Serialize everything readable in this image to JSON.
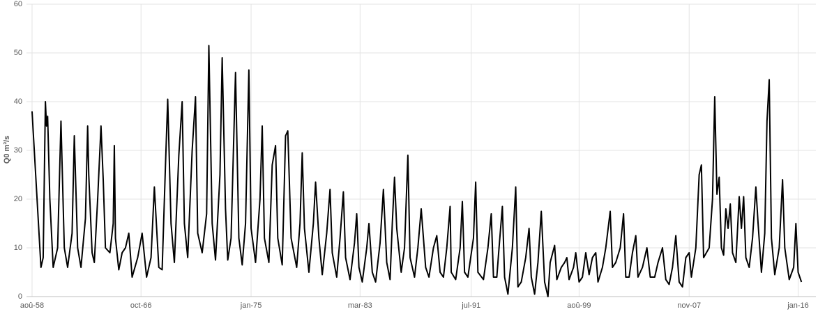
{
  "chart_data": {
    "type": "line",
    "y_label": "Q0 m³/s",
    "color": "#000000",
    "grid": true,
    "xlim": [
      "1958-03",
      "2017-05"
    ],
    "xticks": [
      {
        "value": "1958-08",
        "label": "aoû-58"
      },
      {
        "value": "1966-10",
        "label": "oct-66"
      },
      {
        "value": "1975-01",
        "label": "jan-75"
      },
      {
        "value": "1983-03",
        "label": "mar-83"
      },
      {
        "value": "1991-07",
        "label": "jul-91"
      },
      {
        "value": "1999-08",
        "label": "aoû-99"
      },
      {
        "value": "2007-11",
        "label": "nov-07"
      },
      {
        "value": "2016-01",
        "label": "jan-16"
      }
    ],
    "ylim": [
      0,
      60
    ],
    "yticks": [
      0,
      10,
      20,
      30,
      40,
      50,
      60
    ],
    "x": [
      "1958-08",
      "1959-04",
      "1959-06",
      "1959-08",
      "1959-09",
      "1959-10",
      "1959-12",
      "1960-03",
      "1960-07",
      "1960-10",
      "1961-01",
      "1961-04",
      "1961-08",
      "1961-10",
      "1962-01",
      "1962-04",
      "1962-08",
      "1962-10",
      "1962-11",
      "1963-02",
      "1963-04",
      "1963-07",
      "1963-10",
      "1963-12",
      "1964-02",
      "1964-06",
      "1964-09",
      "1964-10",
      "1964-11",
      "1965-02",
      "1965-05",
      "1965-08",
      "1965-11",
      "1966-02",
      "1966-07",
      "1966-11",
      "1967-03",
      "1967-07",
      "1967-10",
      "1968-02",
      "1968-05",
      "1968-08",
      "1968-10",
      "1969-01",
      "1969-04",
      "1969-08",
      "1969-11",
      "1970-01",
      "1970-04",
      "1970-08",
      "1970-11",
      "1971-01",
      "1971-05",
      "1971-09",
      "1971-11",
      "1972-02",
      "1972-05",
      "1972-09",
      "1972-11",
      "1973-02",
      "1973-04",
      "1973-07",
      "1973-11",
      "1974-02",
      "1974-05",
      "1974-08",
      "1974-11",
      "1975-01",
      "1975-05",
      "1975-09",
      "1975-11",
      "1976-01",
      "1976-05",
      "1976-08",
      "1976-11",
      "1977-01",
      "1977-05",
      "1977-08",
      "1977-10",
      "1978-01",
      "1978-06",
      "1978-09",
      "1978-11",
      "1979-01",
      "1979-05",
      "1979-09",
      "1979-11",
      "1980-02",
      "1980-05",
      "1980-09",
      "1980-12",
      "1981-02",
      "1981-06",
      "1981-09",
      "1981-12",
      "1982-02",
      "1982-06",
      "1982-10",
      "1982-12",
      "1983-02",
      "1983-05",
      "1983-09",
      "1983-11",
      "1984-02",
      "1984-05",
      "1984-09",
      "1984-12",
      "1985-03",
      "1985-06",
      "1985-08",
      "1985-10",
      "1985-12",
      "1986-04",
      "1986-07",
      "1986-10",
      "1986-12",
      "1987-04",
      "1987-07",
      "1987-10",
      "1988-02",
      "1988-05",
      "1988-09",
      "1988-12",
      "1989-03",
      "1989-06",
      "1989-09",
      "1989-12",
      "1990-01",
      "1990-05",
      "1990-09",
      "1990-11",
      "1991-01",
      "1991-04",
      "1991-09",
      "1991-11",
      "1992-01",
      "1992-06",
      "1992-10",
      "1993-01",
      "1993-03",
      "1993-06",
      "1993-08",
      "1993-11",
      "1994-01",
      "1994-04",
      "1994-08",
      "1994-11",
      "1995-01",
      "1995-04",
      "1995-08",
      "1995-11",
      "1996-01",
      "1996-04",
      "1996-07",
      "1996-10",
      "1997-01",
      "1997-04",
      "1997-06",
      "1997-10",
      "1997-12",
      "1998-04",
      "1998-07",
      "1998-09",
      "1998-11",
      "1999-03",
      "1999-05",
      "1999-08",
      "1999-11",
      "2000-02",
      "2000-05",
      "2000-08",
      "2000-11",
      "2001-01",
      "2001-05",
      "2001-08",
      "2001-12",
      "2002-02",
      "2002-05",
      "2002-09",
      "2002-12",
      "2003-02",
      "2003-05",
      "2003-08",
      "2003-11",
      "2004-01",
      "2004-05",
      "2004-09",
      "2004-12",
      "2005-04",
      "2005-07",
      "2005-11",
      "2006-02",
      "2006-05",
      "2006-08",
      "2006-11",
      "2007-02",
      "2007-05",
      "2007-08",
      "2007-11",
      "2008-01",
      "2008-05",
      "2008-08",
      "2008-10",
      "2008-12",
      "2009-05",
      "2009-08",
      "2009-10",
      "2009-12",
      "2010-02",
      "2010-04",
      "2010-06",
      "2010-08",
      "2010-10",
      "2010-12",
      "2011-02",
      "2011-05",
      "2011-08",
      "2011-10",
      "2011-12",
      "2012-02",
      "2012-05",
      "2012-08",
      "2012-11",
      "2013-01",
      "2013-04",
      "2013-07",
      "2013-09",
      "2013-11",
      "2014-01",
      "2014-04",
      "2014-08",
      "2014-11",
      "2015-01",
      "2015-05",
      "2015-09",
      "2015-11",
      "2016-01",
      "2016-04"
    ],
    "values": [
      38,
      6,
      8,
      40,
      35,
      37,
      20,
      6,
      10,
      36,
      10,
      6,
      13,
      33,
      10,
      6,
      16,
      35,
      25,
      9,
      7,
      20,
      35,
      24,
      10,
      9,
      15,
      31,
      12,
      5.5,
      9,
      10,
      13,
      4,
      8,
      13,
      4,
      8,
      22.5,
      6,
      5.5,
      27,
      40.5,
      15,
      7,
      29,
      40,
      15,
      8,
      30,
      41,
      13,
      9,
      17,
      51.5,
      15,
      7.5,
      25,
      49,
      18,
      7.5,
      12,
      46,
      12,
      6.5,
      15,
      46.5,
      14,
      7,
      20,
      35,
      12,
      7,
      27,
      31,
      12,
      6.5,
      33,
      34,
      12,
      6,
      15,
      29.5,
      14,
      5,
      15,
      23.5,
      12,
      4.5,
      13,
      22,
      9,
      4,
      12,
      21.5,
      8,
      3.5,
      11,
      17,
      6,
      3,
      10,
      15,
      5,
      3,
      11,
      22,
      7,
      3.5,
      15,
      24.5,
      14,
      5,
      10,
      29,
      8,
      4,
      10,
      18,
      6,
      4,
      10,
      12.5,
      5,
      4,
      10,
      18.5,
      5,
      3.5,
      10,
      19.5,
      5,
      4,
      12,
      23.5,
      5,
      3.5,
      10,
      17,
      4,
      4,
      10,
      18.5,
      4,
      0.5,
      10,
      22.5,
      2,
      3,
      8,
      14,
      4,
      0.5,
      7,
      17.5,
      3,
      0,
      7,
      10.5,
      3.5,
      6,
      7,
      8,
      3.5,
      6,
      9,
      3,
      4,
      9,
      4.5,
      8,
      9,
      3,
      6,
      10,
      17.5,
      6,
      7,
      10,
      17,
      4,
      4,
      9,
      12.5,
      4,
      6,
      10,
      4,
      4,
      7,
      10,
      3.5,
      2.5,
      6,
      12.5,
      3,
      2,
      8,
      9,
      4,
      10,
      25,
      27,
      8,
      10,
      20,
      41,
      21,
      24.5,
      10,
      8.5,
      18,
      14,
      19,
      9,
      7,
      20.5,
      14,
      20.5,
      8,
      6,
      12,
      22.5,
      15,
      5,
      13,
      36,
      44.5,
      12,
      4.5,
      10,
      24,
      10,
      3.5,
      6,
      15,
      5,
      3
    ]
  }
}
